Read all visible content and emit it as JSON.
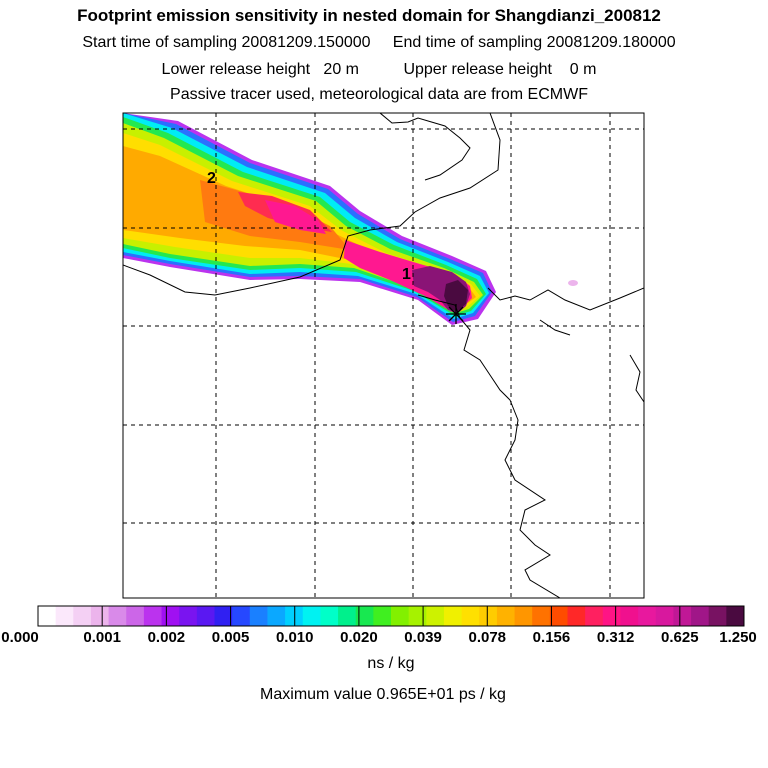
{
  "header": {
    "title": "Footprint emission sensitivity in nested domain for Shangdianzi_200812",
    "sampling_line": "Start time of sampling 20081209.150000     End time of sampling 20081209.180000",
    "release_line": "Lower release height   20 m          Upper release height    0 m",
    "tracer_line": "Passive tracer used, meteorological data are from ECMWF"
  },
  "map": {
    "markers": [
      {
        "label": "2"
      },
      {
        "label": "1"
      }
    ]
  },
  "colorbar": {
    "colors": [
      "#ffffff",
      "#fbe8fb",
      "#f4d0f4",
      "#ecb4ec",
      "#d98ae9",
      "#cc66e8",
      "#bb33ee",
      "#a010f2",
      "#7a14f0",
      "#5a18f2",
      "#3020f2",
      "#2648ff",
      "#1a80ff",
      "#0ba8ff",
      "#00d0ff",
      "#00f2f2",
      "#00ffc8",
      "#00f08c",
      "#18e850",
      "#40ef20",
      "#82f000",
      "#a6f200",
      "#cdf200",
      "#f0f000",
      "#ffe000",
      "#ffcc00",
      "#ffb200",
      "#ff9600",
      "#ff7200",
      "#ff4c00",
      "#ff2828",
      "#ff2060",
      "#ff1485",
      "#f0108e",
      "#e8189e",
      "#d8189e",
      "#c01896",
      "#a01688",
      "#781262",
      "#4a0a40"
    ],
    "ticks": [
      "0.000",
      "0.001",
      "0.002",
      "0.005",
      "0.010",
      "0.020",
      "0.039",
      "0.078",
      "0.156",
      "0.312",
      "0.625",
      "1.250"
    ],
    "units": "ns / kg"
  },
  "footer": {
    "max_value": "Maximum value  0.965E+01 ps / kg"
  }
}
